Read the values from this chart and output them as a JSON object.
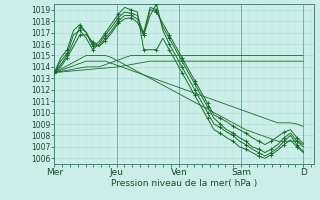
{
  "xlabel": "Pression niveau de la mer( hPa )",
  "bg_color": "#cceee8",
  "grid_color_major": "#a8d8d0",
  "grid_color_minor": "#b8e4de",
  "line_color": "#1a6b2a",
  "ylim": [
    1005.5,
    1019.5
  ],
  "xlim": [
    0,
    100
  ],
  "day_labels": [
    "Mer",
    "Jeu",
    "Ven",
    "Sam",
    "D"
  ],
  "day_positions": [
    0,
    24,
    48,
    72,
    96
  ],
  "yticks": [
    1006,
    1007,
    1008,
    1009,
    1010,
    1011,
    1012,
    1013,
    1014,
    1015,
    1016,
    1017,
    1018,
    1019
  ],
  "lines_with_markers": [
    [
      1013.5,
      1014.2,
      1015.0,
      1016.2,
      1017.5,
      1017.0,
      1016.0,
      1015.8,
      1016.5,
      1017.2,
      1018.0,
      1018.5,
      1018.5,
      1018.2,
      1017.0,
      1019.2,
      1019.0,
      1017.5,
      1016.5,
      1015.5,
      1014.5,
      1013.5,
      1012.5,
      1011.5,
      1010.5,
      1009.5,
      1009.0,
      1008.5,
      1008.2,
      1007.8,
      1007.5,
      1007.0,
      1006.8,
      1006.5,
      1006.8,
      1007.2,
      1007.8,
      1008.2,
      1007.5,
      1007.0
    ],
    [
      1013.5,
      1014.5,
      1015.2,
      1016.8,
      1017.2,
      1016.5,
      1015.5,
      1016.0,
      1016.8,
      1017.5,
      1018.3,
      1018.8,
      1018.7,
      1018.5,
      1016.8,
      1018.5,
      1019.5,
      1017.2,
      1016.0,
      1015.0,
      1014.0,
      1013.0,
      1012.0,
      1011.0,
      1010.0,
      1009.0,
      1008.7,
      1008.3,
      1008.0,
      1007.5,
      1007.2,
      1006.8,
      1006.5,
      1006.2,
      1006.5,
      1006.9,
      1007.5,
      1008.0,
      1007.2,
      1006.6
    ],
    [
      1013.5,
      1014.0,
      1014.8,
      1015.8,
      1016.8,
      1016.8,
      1016.2,
      1015.8,
      1016.3,
      1017.0,
      1017.8,
      1018.2,
      1018.3,
      1017.9,
      1016.8,
      1019.0,
      1018.8,
      1017.8,
      1016.8,
      1015.8,
      1014.8,
      1013.8,
      1012.8,
      1011.8,
      1010.8,
      1009.8,
      1009.5,
      1009.2,
      1008.8,
      1008.5,
      1008.2,
      1007.8,
      1007.5,
      1007.2,
      1007.5,
      1007.9,
      1008.3,
      1008.5,
      1007.8,
      1007.3
    ],
    [
      1013.5,
      1014.8,
      1015.5,
      1017.2,
      1017.7,
      1017.0,
      1015.8,
      1016.2,
      1017.0,
      1017.8,
      1018.6,
      1019.2,
      1019.0,
      1018.8,
      1015.5,
      1015.5,
      1015.5,
      1016.5,
      1015.5,
      1014.5,
      1013.5,
      1012.5,
      1011.5,
      1010.5,
      1009.5,
      1008.5,
      1008.2,
      1007.8,
      1007.5,
      1007.0,
      1006.8,
      1006.5,
      1006.2,
      1006.0,
      1006.3,
      1006.7,
      1007.2,
      1007.6,
      1007.0,
      1006.5
    ]
  ],
  "lines_straight": [
    [
      1013.5,
      1013.8,
      1014.1,
      1014.4,
      1014.7,
      1015.0,
      1015.0,
      1015.0,
      1015.0,
      1014.8,
      1014.5,
      1014.2,
      1013.9,
      1013.6,
      1013.3,
      1013.0,
      1012.7,
      1012.4,
      1012.1,
      1011.8,
      1011.5,
      1011.2,
      1010.9,
      1010.6,
      1010.3,
      1010.0,
      1009.7,
      1009.4,
      1009.1,
      1008.8,
      1008.5,
      1008.3,
      1008.1,
      1007.9,
      1007.7,
      1007.5,
      1007.5,
      1007.5,
      1007.5,
      1007.2
    ],
    [
      1013.5,
      1013.7,
      1013.9,
      1014.1,
      1014.3,
      1014.5,
      1014.5,
      1014.5,
      1014.5,
      1014.3,
      1014.1,
      1013.9,
      1013.7,
      1013.5,
      1013.3,
      1013.1,
      1012.9,
      1012.7,
      1012.5,
      1012.3,
      1012.1,
      1011.9,
      1011.7,
      1011.5,
      1011.3,
      1011.1,
      1010.9,
      1010.7,
      1010.5,
      1010.3,
      1010.1,
      1009.9,
      1009.7,
      1009.5,
      1009.3,
      1009.1,
      1009.1,
      1009.1,
      1009.0,
      1008.8
    ],
    [
      1013.5,
      1013.6,
      1013.7,
      1013.8,
      1013.9,
      1014.0,
      1014.0,
      1014.0,
      1014.2,
      1014.4,
      1014.6,
      1014.8,
      1015.0,
      1015.0,
      1015.0,
      1015.0,
      1015.0,
      1015.0,
      1015.0,
      1015.0,
      1015.0,
      1015.0,
      1015.0,
      1015.0,
      1015.0,
      1015.0,
      1015.0,
      1015.0,
      1015.0,
      1015.0,
      1015.0,
      1015.0,
      1015.0,
      1015.0,
      1015.0,
      1015.0,
      1015.0,
      1015.0,
      1015.0,
      1015.0
    ],
    [
      1013.5,
      1013.55,
      1013.6,
      1013.65,
      1013.7,
      1013.75,
      1013.8,
      1013.85,
      1013.9,
      1013.95,
      1014.0,
      1014.1,
      1014.2,
      1014.3,
      1014.4,
      1014.5,
      1014.5,
      1014.5,
      1014.5,
      1014.5,
      1014.5,
      1014.5,
      1014.5,
      1014.5,
      1014.5,
      1014.5,
      1014.5,
      1014.5,
      1014.5,
      1014.5,
      1014.5,
      1014.5,
      1014.5,
      1014.5,
      1014.5,
      1014.5,
      1014.5,
      1014.5,
      1014.5,
      1014.5
    ]
  ]
}
